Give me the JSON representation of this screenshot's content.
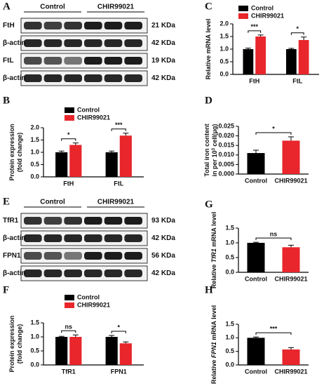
{
  "blots": [
    {
      "label": "A",
      "groups": [
        "Control",
        "CHIR99021"
      ],
      "rows": [
        {
          "name": "FtH",
          "size": "21 KDa"
        },
        {
          "name": "β-actin",
          "size": "42 KDa"
        },
        {
          "name": "FtL",
          "size": "19 KDa"
        },
        {
          "name": "β-actin",
          "size": "42 KDa"
        }
      ]
    },
    {
      "label": "E",
      "groups": [
        "Control",
        "CHIR99021"
      ],
      "rows": [
        {
          "name": "TfR1",
          "size": "93 KDa"
        },
        {
          "name": "β-actin",
          "size": "42 KDa"
        },
        {
          "name": "FPN1",
          "size": "56 KDa"
        },
        {
          "name": "β-actin",
          "size": "42 KDa"
        }
      ]
    }
  ],
  "chart_data": [
    {
      "type": "grouped_bar",
      "label": "C",
      "categories": [
        "FtH",
        "FtL"
      ],
      "series": [
        {
          "name": "Control",
          "color": "#000000",
          "values": [
            1.0,
            1.0
          ],
          "errors": [
            0.04,
            0.03
          ]
        },
        {
          "name": "CHIR99021",
          "color": "#e8262b",
          "values": [
            1.5,
            1.36
          ],
          "errors": [
            0.06,
            0.12
          ]
        }
      ],
      "ylabel": [
        [
          "Relative mRNA level"
        ]
      ],
      "ylim": [
        0,
        2
      ],
      "yticks": [
        {
          "value": 0,
          "label": "0.0"
        },
        0.5,
        {
          "value": 1,
          "label": "1.0"
        },
        1.5,
        {
          "value": 2,
          "label": "2.0"
        }
      ],
      "annotations": [
        {
          "text": "***",
          "category": "FtH"
        },
        {
          "text": "*",
          "category": "FtL"
        }
      ]
    },
    {
      "type": "grouped_bar",
      "label": "B",
      "categories": [
        "FtH",
        "FtL"
      ],
      "series": [
        {
          "name": "Control",
          "color": "#000000",
          "values": [
            1.0,
            1.0
          ],
          "errors": [
            0.05,
            0.05
          ]
        },
        {
          "name": "CHIR99021",
          "color": "#e8262b",
          "values": [
            1.3,
            1.68
          ],
          "errors": [
            0.08,
            0.1
          ]
        }
      ],
      "ylabel": [
        [
          "Protein expression"
        ],
        [
          "(fold change)"
        ]
      ],
      "ylim": [
        0,
        2
      ],
      "yticks": [
        {
          "value": 0,
          "label": "0.0"
        },
        0.5,
        {
          "value": 1,
          "label": "1.0"
        },
        1.5,
        {
          "value": 2,
          "label": "2.0"
        }
      ],
      "annotations": [
        {
          "text": "*",
          "category": "FtH"
        },
        {
          "text": "***",
          "category": "FtL"
        }
      ]
    },
    {
      "type": "bar",
      "label": "D",
      "categories": [
        "Control",
        "CHIR99021"
      ],
      "values": [
        0.011,
        0.0175
      ],
      "errors": [
        0.0015,
        0.002
      ],
      "colors": [
        "#000000",
        "#e8262b"
      ],
      "ylabel": [
        [
          "Total iron content"
        ],
        [
          "in per 10",
          "3",
          " cell(μg)"
        ]
      ],
      "ylabel_style": "superscript",
      "ylim": [
        0,
        0.025
      ],
      "yticks": [
        {
          "value": 0,
          "label": "0.000"
        },
        0.005,
        {
          "value": 0.01,
          "label": "0.010"
        },
        0.015,
        {
          "value": 0.02,
          "label": "0.020"
        },
        0.025
      ],
      "annotation": "*"
    },
    {
      "type": "bar",
      "label": "G",
      "categories": [
        "Control",
        "CHIR99021"
      ],
      "values": [
        1.0,
        0.85
      ],
      "errors": [
        0.02,
        0.07
      ],
      "colors": [
        "#000000",
        "#e8262b"
      ],
      "ylabel": [
        [
          "Relative ",
          "TfR1",
          " mRNA level"
        ]
      ],
      "ylabel_style": "italic",
      "ylim": [
        0,
        1.5
      ],
      "yticks": [
        {
          "value": 0,
          "label": "0.0"
        },
        0.5,
        {
          "value": 1,
          "label": "1.0"
        },
        1.5
      ],
      "annotation": "ns"
    },
    {
      "type": "grouped_bar",
      "label": "F",
      "categories": [
        "TfR1",
        "FPN1"
      ],
      "series": [
        {
          "name": "Control",
          "color": "#000000",
          "values": [
            1.0,
            1.0
          ],
          "errors": [
            0.02,
            0.05
          ]
        },
        {
          "name": "CHIR99021",
          "color": "#e8262b",
          "values": [
            1.0,
            0.77
          ],
          "errors": [
            0.07,
            0.05
          ]
        }
      ],
      "ylabel": [
        [
          "Protein expression"
        ],
        [
          "(fold change)"
        ]
      ],
      "ylim": [
        0,
        1.5
      ],
      "yticks": [
        {
          "value": 0,
          "label": "0.0"
        },
        0.5,
        {
          "value": 1,
          "label": "1.0"
        },
        1.5
      ],
      "annotations": [
        {
          "text": "ns",
          "category": "TfR1"
        },
        {
          "text": "*",
          "category": "FPN1"
        }
      ]
    },
    {
      "type": "bar",
      "label": "H",
      "categories": [
        "Control",
        "CHIR99021"
      ],
      "values": [
        1.0,
        0.57
      ],
      "errors": [
        0.03,
        0.07
      ],
      "colors": [
        "#000000",
        "#e8262b"
      ],
      "ylabel": [
        [
          "Relative ",
          "FPN1",
          " mRNA level"
        ]
      ],
      "ylabel_style": "italic",
      "ylim": [
        0,
        1.5
      ],
      "yticks": [
        {
          "value": 0,
          "label": "0.0"
        },
        0.5,
        {
          "value": 1,
          "label": "1.0"
        },
        1.5
      ],
      "annotation": "***"
    }
  ]
}
